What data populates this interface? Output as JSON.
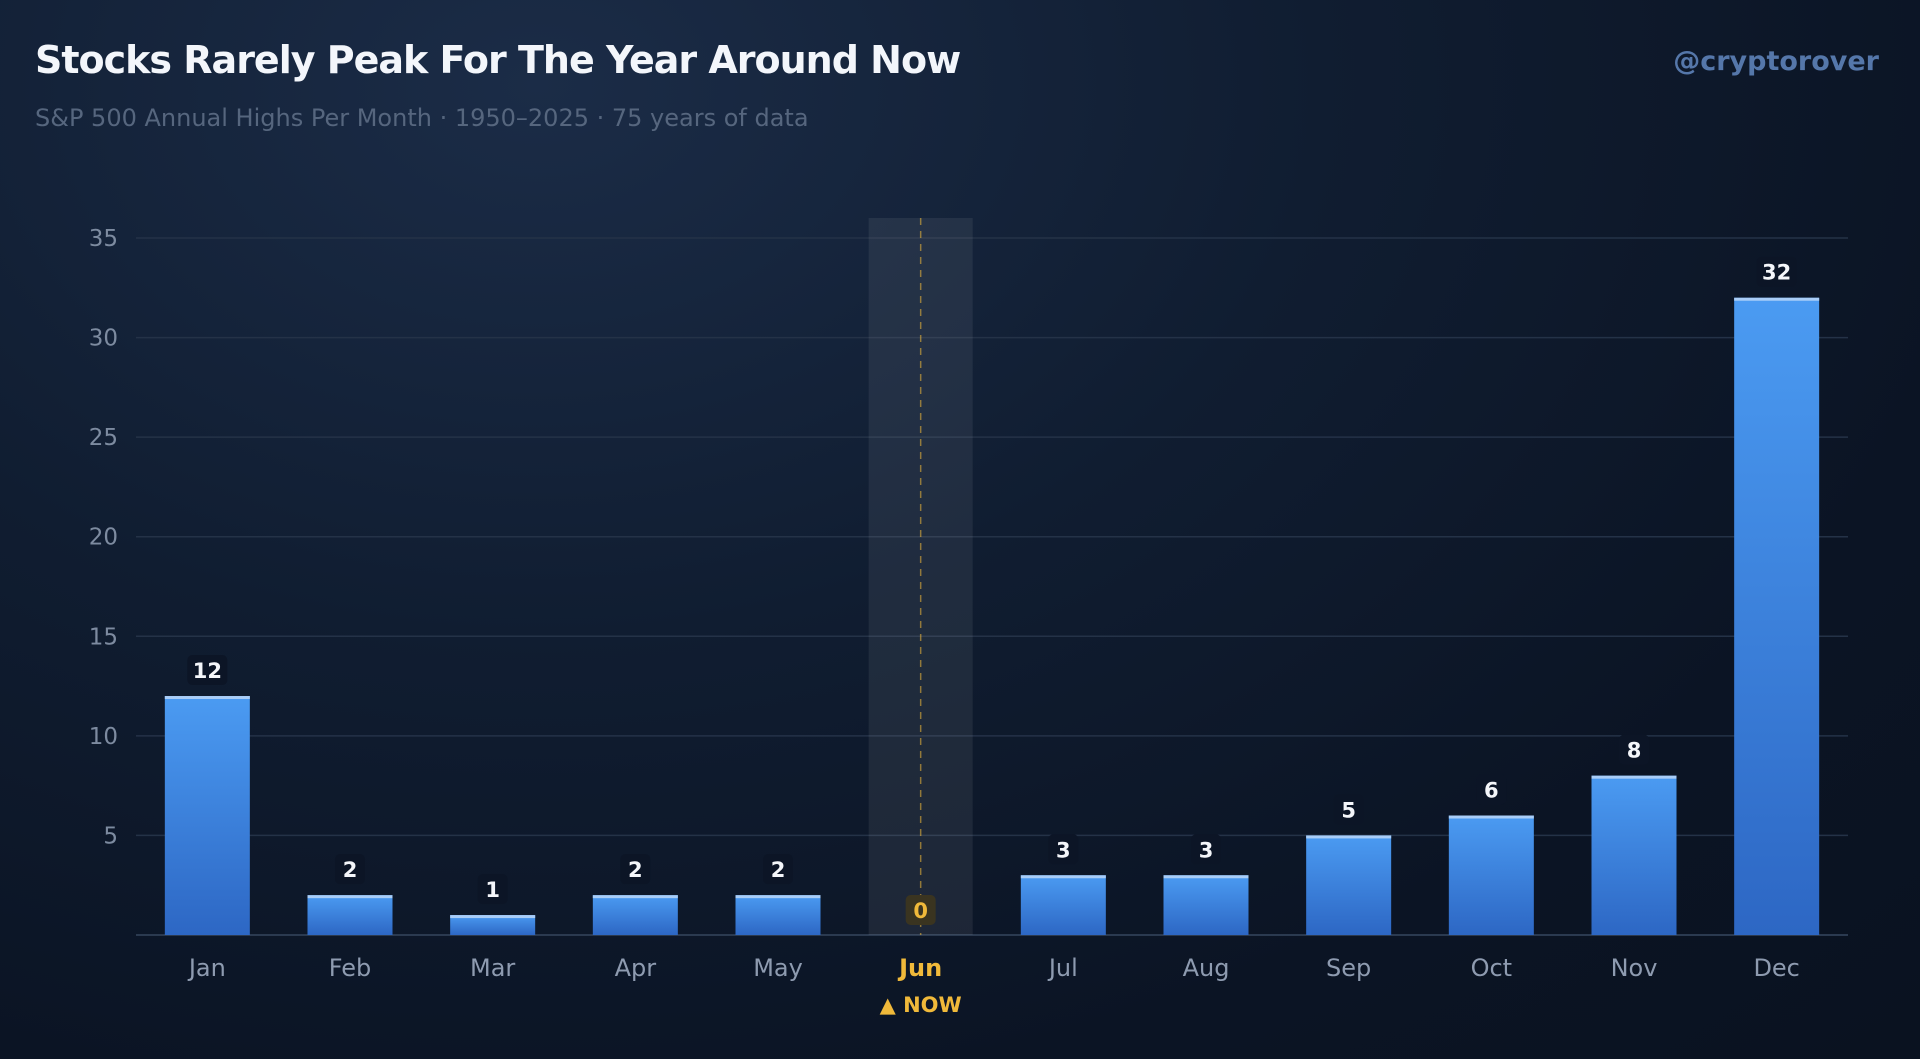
{
  "header": {
    "title": "Stocks Rarely Peak For The Year Around Now",
    "subtitle": "S&P 500 Annual Highs Per Month · 1950–2025 · 75 years of data",
    "handle": "@cryptorover"
  },
  "chart_data": {
    "type": "bar",
    "title": "Stocks Rarely Peak For The Year Around Now",
    "subtitle": "S&P 500 Annual Highs Per Month · 1950–2025 · 75 years of data",
    "categories": [
      "Jan",
      "Feb",
      "Mar",
      "Apr",
      "May",
      "Jun",
      "Jul",
      "Aug",
      "Sep",
      "Oct",
      "Nov",
      "Dec"
    ],
    "values": [
      12,
      2,
      1,
      2,
      2,
      0,
      3,
      3,
      5,
      6,
      8,
      32
    ],
    "data_labels": [
      "12",
      "2",
      "1",
      "2",
      "2",
      "0",
      "3",
      "3",
      "5",
      "6",
      "8",
      "32"
    ],
    "xlabel": "",
    "ylabel": "",
    "ylim": [
      0,
      35
    ],
    "yticks": [
      5,
      10,
      15,
      20,
      25,
      30,
      35
    ],
    "grid": true,
    "highlight": {
      "category": "Jun",
      "label": "NOW",
      "marker": "▲"
    },
    "colors": {
      "bar_top": "#4b9bf2",
      "bar_bottom": "#2d67c4",
      "highlight": "#f0b93a",
      "grid": "#243247"
    }
  }
}
